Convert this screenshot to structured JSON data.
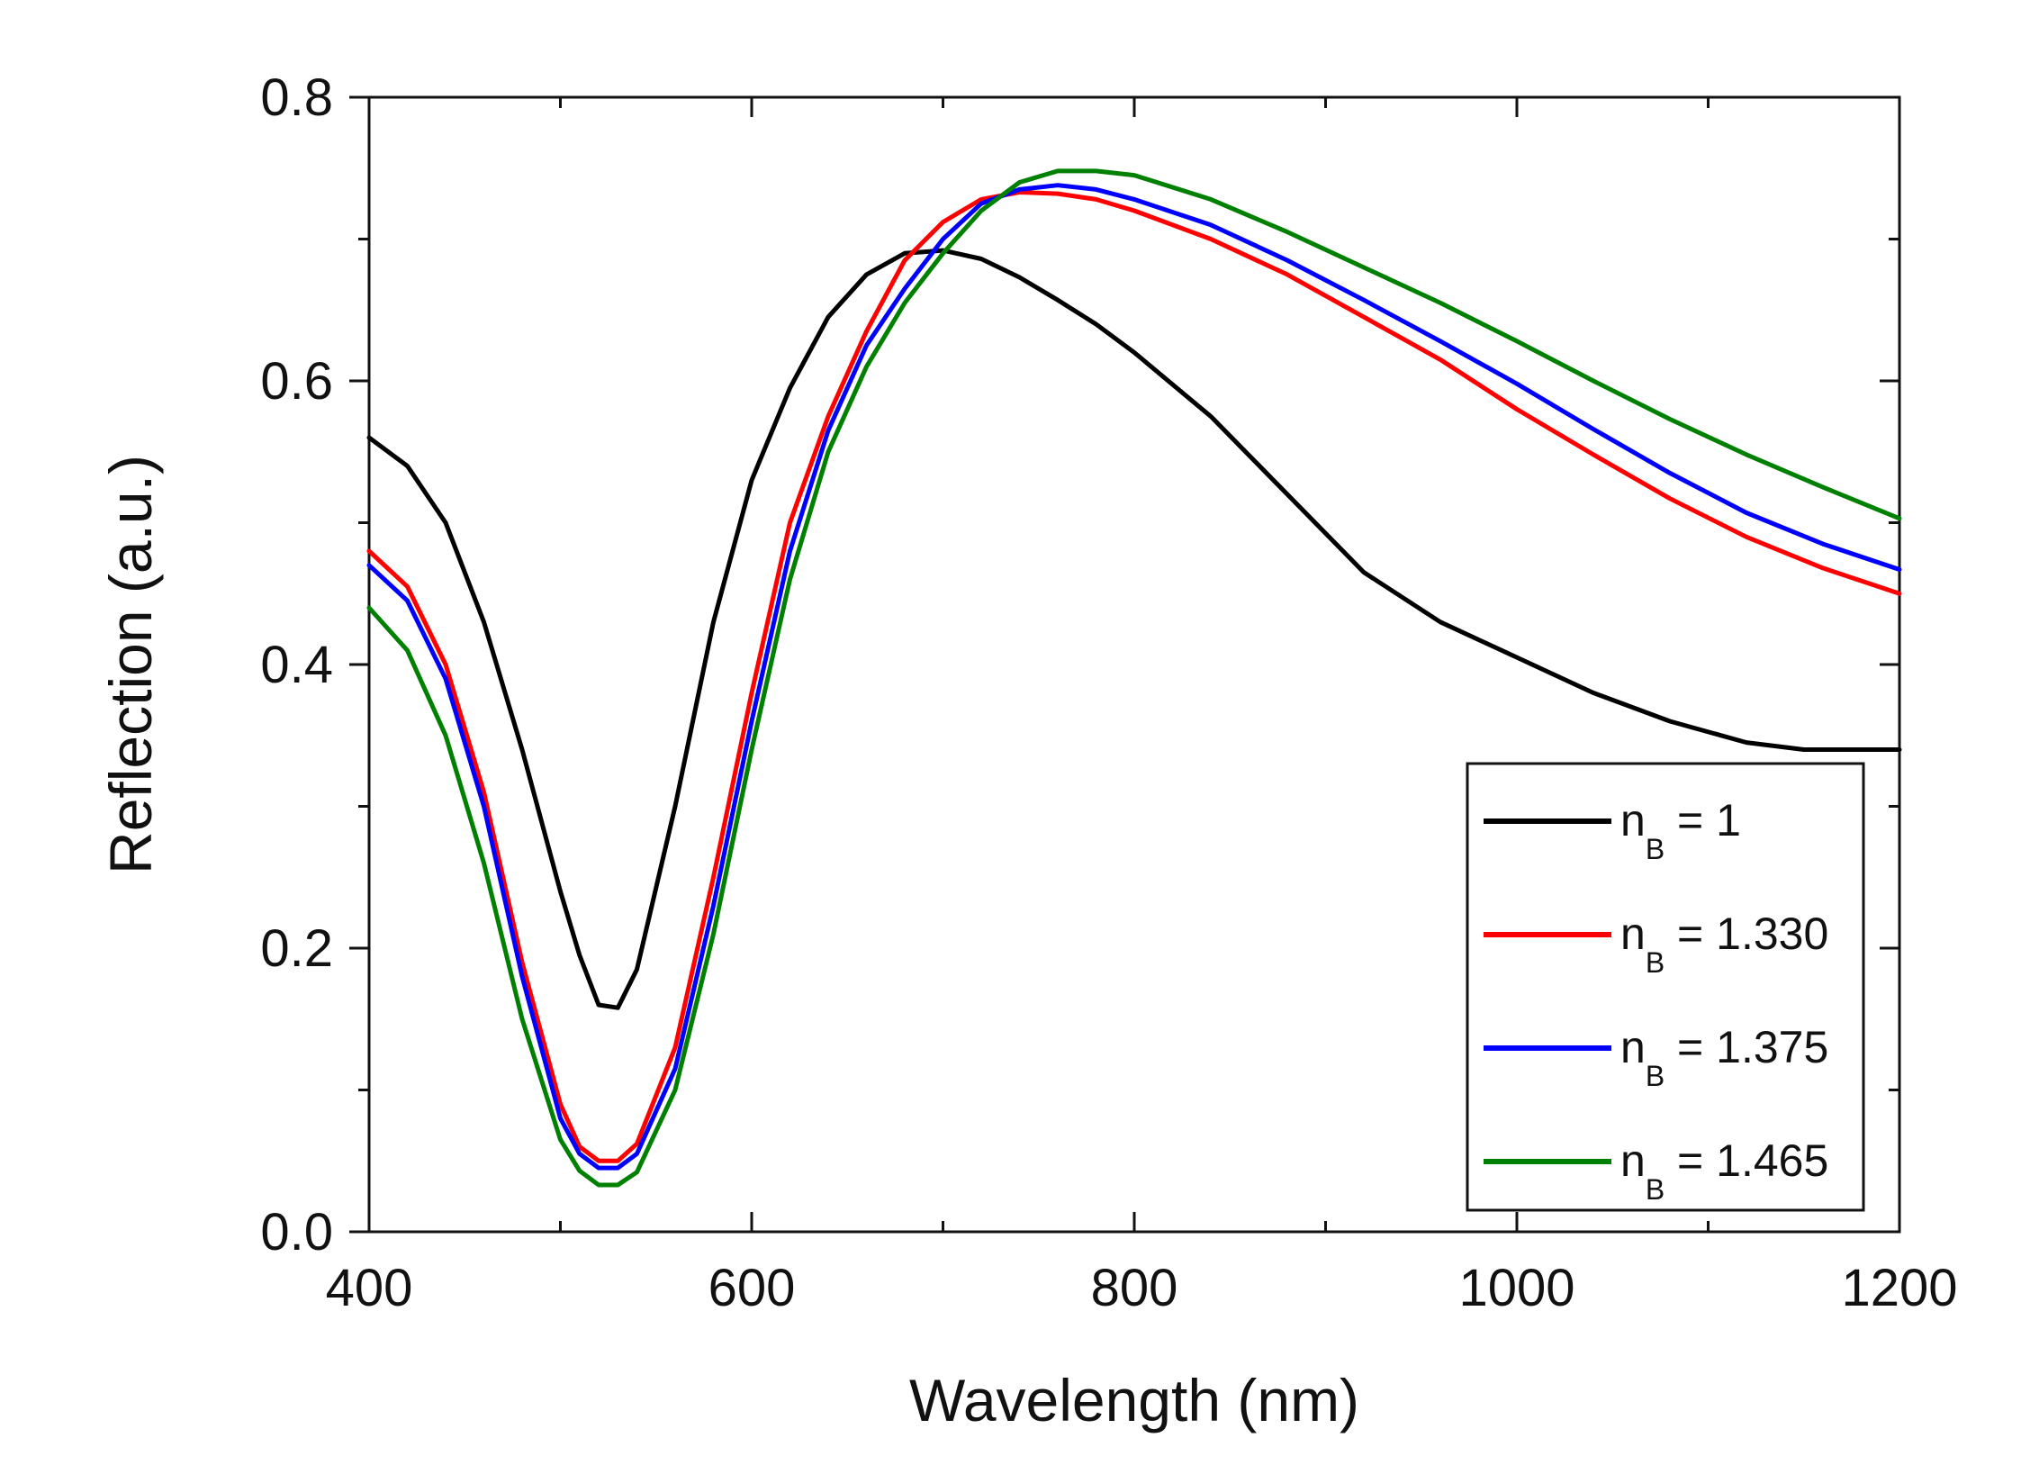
{
  "chart_data": {
    "type": "line",
    "title": "",
    "xlabel": "Wavelength (nm)",
    "ylabel": "Reflection (a.u.)",
    "xlim": [
      400,
      1200
    ],
    "ylim": [
      0.0,
      0.8
    ],
    "x_ticks": [
      "400",
      "600",
      "800",
      "1000",
      "1200"
    ],
    "y_ticks": [
      "0.0",
      "0.2",
      "0.4",
      "0.6",
      "0.8"
    ],
    "grid": false,
    "legend_position": "bottom-right",
    "series": [
      {
        "name": "n_B = 1",
        "legend": {
          "base": "n",
          "sub": "B",
          "rest": " = 1"
        },
        "color": "#000000",
        "x": [
          400,
          420,
          440,
          460,
          480,
          500,
          510,
          520,
          530,
          540,
          560,
          580,
          600,
          620,
          640,
          660,
          680,
          700,
          720,
          740,
          760,
          780,
          800,
          840,
          880,
          920,
          960,
          1000,
          1040,
          1080,
          1120,
          1150,
          1200
        ],
        "y": [
          0.56,
          0.54,
          0.5,
          0.43,
          0.34,
          0.24,
          0.195,
          0.16,
          0.158,
          0.185,
          0.3,
          0.43,
          0.53,
          0.595,
          0.645,
          0.675,
          0.69,
          0.692,
          0.686,
          0.673,
          0.657,
          0.64,
          0.62,
          0.575,
          0.52,
          0.465,
          0.43,
          0.405,
          0.38,
          0.36,
          0.345,
          0.34,
          0.34
        ]
      },
      {
        "name": "n_B = 1.330",
        "legend": {
          "base": "n",
          "sub": "B",
          "rest": " = 1.330"
        },
        "color": "#ff0000",
        "x": [
          400,
          420,
          440,
          460,
          480,
          500,
          510,
          520,
          530,
          540,
          560,
          580,
          600,
          620,
          640,
          660,
          680,
          700,
          720,
          740,
          760,
          780,
          800,
          840,
          880,
          920,
          960,
          1000,
          1040,
          1080,
          1120,
          1160,
          1200
        ],
        "y": [
          0.48,
          0.455,
          0.4,
          0.31,
          0.19,
          0.09,
          0.06,
          0.05,
          0.05,
          0.062,
          0.13,
          0.25,
          0.38,
          0.5,
          0.575,
          0.635,
          0.685,
          0.712,
          0.728,
          0.733,
          0.732,
          0.728,
          0.72,
          0.7,
          0.675,
          0.645,
          0.615,
          0.58,
          0.548,
          0.517,
          0.49,
          0.468,
          0.45
        ]
      },
      {
        "name": "n_B = 1.375",
        "legend": {
          "base": "n",
          "sub": "B",
          "rest": " = 1.375"
        },
        "color": "#0000ff",
        "x": [
          400,
          420,
          440,
          460,
          480,
          500,
          510,
          520,
          530,
          540,
          560,
          580,
          600,
          620,
          640,
          660,
          680,
          700,
          720,
          740,
          760,
          780,
          800,
          840,
          880,
          920,
          960,
          1000,
          1040,
          1080,
          1120,
          1160,
          1200
        ],
        "y": [
          0.47,
          0.445,
          0.39,
          0.3,
          0.18,
          0.08,
          0.055,
          0.045,
          0.045,
          0.055,
          0.115,
          0.23,
          0.36,
          0.48,
          0.565,
          0.625,
          0.665,
          0.7,
          0.725,
          0.735,
          0.738,
          0.735,
          0.728,
          0.71,
          0.685,
          0.657,
          0.628,
          0.598,
          0.566,
          0.535,
          0.507,
          0.485,
          0.467
        ]
      },
      {
        "name": "n_B = 1.465",
        "legend": {
          "base": "n",
          "sub": "B",
          "rest": " = 1.465"
        },
        "color": "#008000",
        "x": [
          400,
          420,
          440,
          460,
          480,
          500,
          510,
          520,
          530,
          540,
          560,
          580,
          600,
          620,
          640,
          660,
          680,
          700,
          720,
          740,
          760,
          780,
          800,
          840,
          880,
          920,
          960,
          1000,
          1040,
          1080,
          1120,
          1160,
          1200
        ],
        "y": [
          0.44,
          0.41,
          0.35,
          0.26,
          0.15,
          0.065,
          0.043,
          0.033,
          0.033,
          0.042,
          0.1,
          0.21,
          0.34,
          0.46,
          0.55,
          0.61,
          0.655,
          0.69,
          0.72,
          0.74,
          0.748,
          0.748,
          0.745,
          0.728,
          0.705,
          0.68,
          0.655,
          0.628,
          0.6,
          0.573,
          0.548,
          0.525,
          0.503
        ]
      }
    ]
  }
}
